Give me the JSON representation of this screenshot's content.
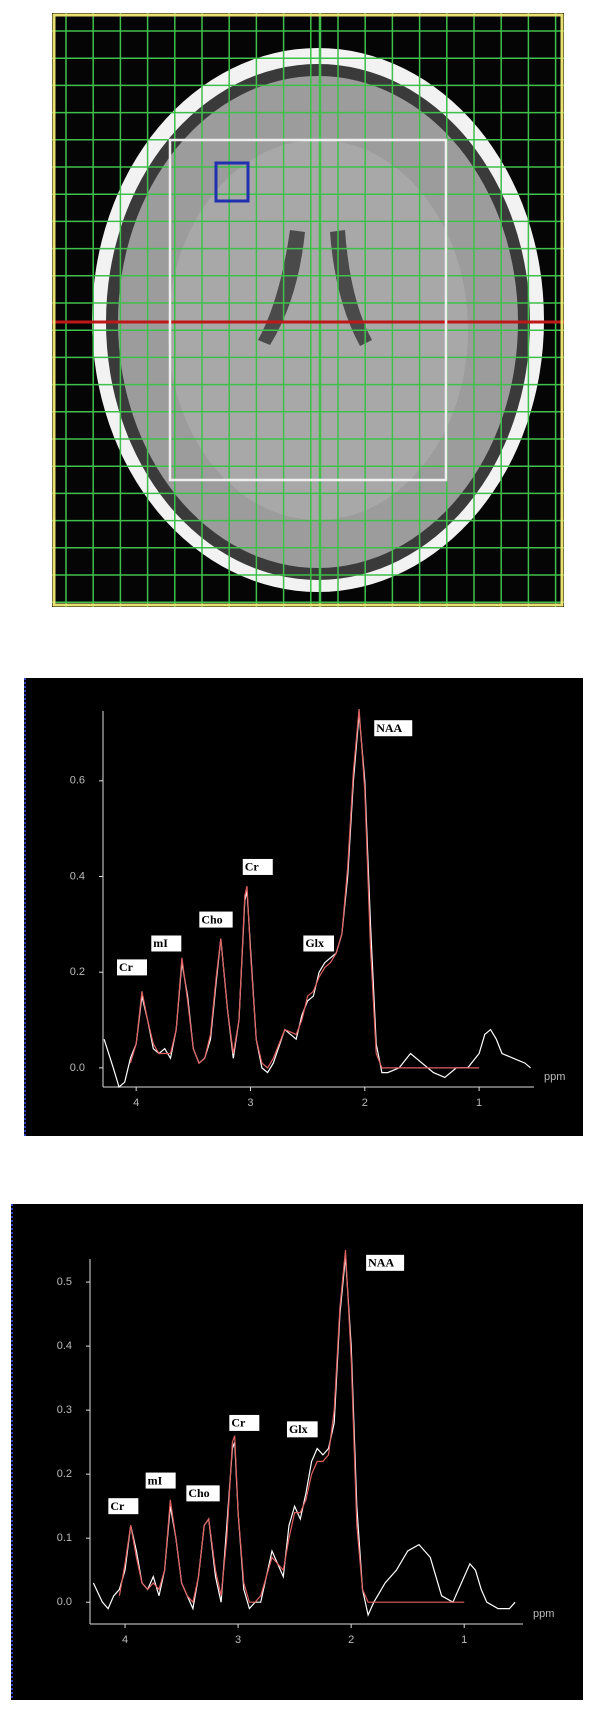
{
  "chart_data": [
    {
      "type": "line",
      "xlabel": "ppm",
      "annotations": [
        "Cr",
        "mI",
        "Cho",
        "Cr",
        "Glx",
        "NAA"
      ],
      "x": [
        4.28,
        4.2,
        4.15,
        4.1,
        4.05,
        4.0,
        3.95,
        3.9,
        3.85,
        3.8,
        3.75,
        3.7,
        3.65,
        3.6,
        3.55,
        3.5,
        3.45,
        3.4,
        3.35,
        3.3,
        3.26,
        3.2,
        3.15,
        3.1,
        3.05,
        3.03,
        3.0,
        2.95,
        2.9,
        2.85,
        2.8,
        2.7,
        2.6,
        2.55,
        2.5,
        2.45,
        2.4,
        2.35,
        2.3,
        2.25,
        2.2,
        2.15,
        2.1,
        2.05,
        2.0,
        1.95,
        1.9,
        1.85,
        1.8,
        1.7,
        1.6,
        1.5,
        1.4,
        1.3,
        1.2,
        1.1,
        1.0,
        0.95,
        0.9,
        0.85,
        0.8,
        0.7,
        0.6,
        0.55
      ],
      "series": [
        {
          "color": "#ffffff",
          "values": [
            0.06,
            0.0,
            -0.04,
            -0.03,
            0.02,
            0.05,
            0.15,
            0.1,
            0.04,
            0.03,
            0.04,
            0.02,
            0.08,
            0.22,
            0.15,
            0.04,
            0.01,
            0.02,
            0.06,
            0.18,
            0.27,
            0.12,
            0.02,
            0.1,
            0.35,
            0.37,
            0.25,
            0.06,
            0.0,
            -0.01,
            0.01,
            0.08,
            0.06,
            0.11,
            0.14,
            0.15,
            0.2,
            0.22,
            0.23,
            0.24,
            0.28,
            0.4,
            0.6,
            0.74,
            0.6,
            0.3,
            0.05,
            -0.01,
            -0.01,
            0.0,
            0.03,
            0.01,
            -0.01,
            -0.02,
            0.0,
            0.0,
            0.03,
            0.07,
            0.08,
            0.06,
            0.03,
            0.02,
            0.01,
            0.0
          ]
        },
        {
          "color": "#e06060",
          "values": [
            null,
            null,
            null,
            null,
            0.01,
            0.05,
            0.16,
            0.1,
            0.05,
            0.03,
            0.03,
            0.03,
            0.08,
            0.23,
            0.14,
            0.04,
            0.01,
            0.02,
            0.07,
            0.19,
            0.27,
            0.12,
            0.03,
            0.1,
            0.36,
            0.38,
            0.24,
            0.06,
            0.01,
            0.0,
            0.02,
            0.08,
            0.07,
            0.1,
            0.15,
            0.16,
            0.19,
            0.21,
            0.22,
            0.24,
            0.28,
            0.42,
            0.62,
            0.75,
            0.58,
            0.25,
            0.03,
            0,
            0,
            0,
            0,
            0,
            0,
            0,
            0,
            0,
            0,
            null,
            null,
            null,
            null,
            null,
            null,
            null
          ]
        }
      ],
      "xlim": [
        4.29,
        0.52
      ],
      "xticks": [
        4,
        3,
        2,
        1
      ],
      "ylim": [
        -0.04,
        0.746
      ],
      "yticks": [
        {
          "value": 0,
          "label": "0.0"
        },
        0.2,
        0.4,
        0.6
      ]
    },
    {
      "type": "line",
      "xlabel": "ppm",
      "annotations": [
        "Cr",
        "mI",
        "Cho",
        "Cr",
        "Glx",
        "NAA"
      ],
      "x": [
        4.28,
        4.2,
        4.15,
        4.1,
        4.05,
        4.0,
        3.95,
        3.9,
        3.85,
        3.8,
        3.75,
        3.7,
        3.65,
        3.6,
        3.55,
        3.5,
        3.45,
        3.4,
        3.35,
        3.3,
        3.26,
        3.2,
        3.15,
        3.1,
        3.05,
        3.03,
        3.0,
        2.95,
        2.9,
        2.85,
        2.8,
        2.7,
        2.6,
        2.55,
        2.5,
        2.45,
        2.4,
        2.35,
        2.3,
        2.25,
        2.2,
        2.15,
        2.1,
        2.05,
        2.0,
        1.95,
        1.9,
        1.85,
        1.8,
        1.7,
        1.6,
        1.5,
        1.4,
        1.3,
        1.2,
        1.1,
        1.0,
        0.95,
        0.9,
        0.85,
        0.8,
        0.7,
        0.6,
        0.55
      ],
      "series": [
        {
          "color": "#ffffff",
          "values": [
            0.03,
            0.0,
            -0.01,
            0.01,
            0.02,
            0.05,
            0.12,
            0.08,
            0.03,
            0.02,
            0.04,
            0.01,
            0.05,
            0.15,
            0.1,
            0.03,
            0.01,
            -0.01,
            0.04,
            0.12,
            0.13,
            0.04,
            0.0,
            0.12,
            0.24,
            0.25,
            0.14,
            0.02,
            -0.01,
            0.0,
            0.0,
            0.08,
            0.04,
            0.12,
            0.15,
            0.13,
            0.17,
            0.22,
            0.24,
            0.23,
            0.24,
            0.28,
            0.45,
            0.54,
            0.4,
            0.15,
            0.02,
            -0.02,
            0.0,
            0.03,
            0.05,
            0.08,
            0.09,
            0.07,
            0.01,
            0.0,
            0.04,
            0.06,
            0.05,
            0.02,
            0.0,
            -0.01,
            -0.01,
            0.0
          ]
        },
        {
          "color": "#e06060",
          "values": [
            null,
            null,
            null,
            null,
            0.01,
            0.06,
            0.12,
            0.07,
            0.03,
            0.02,
            0.03,
            0.02,
            0.05,
            0.16,
            0.1,
            0.03,
            0.01,
            0.0,
            0.04,
            0.12,
            0.13,
            0.05,
            0.01,
            0.1,
            0.25,
            0.26,
            0.14,
            0.03,
            0.0,
            0.0,
            0.01,
            0.07,
            0.05,
            0.1,
            0.14,
            0.14,
            0.16,
            0.2,
            0.22,
            0.22,
            0.23,
            0.3,
            0.46,
            0.55,
            0.38,
            0.12,
            0.02,
            0,
            0,
            0,
            0,
            0,
            0,
            0,
            0,
            0,
            0,
            null,
            null,
            null,
            null,
            null,
            null,
            null
          ]
        }
      ],
      "xlim": [
        4.31,
        0.48
      ],
      "xticks": [
        4,
        3,
        2,
        1
      ],
      "ylim": [
        -0.034,
        0.536
      ],
      "yticks": [
        {
          "value": 0,
          "label": "0.0"
        },
        0.1,
        0.2,
        0.3,
        0.4,
        0.5
      ]
    }
  ]
}
